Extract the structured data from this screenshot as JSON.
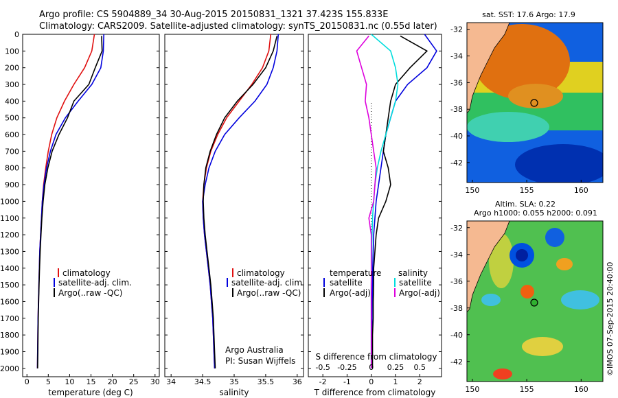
{
  "header": {
    "line1": "Argo profile: CS 5904889_34 30-Aug-2015 20150831_1321 37.423S 155.833E",
    "line2": "Climatology: CARS2009. Satellite-adjusted climatology: synTS_20150831.nc (0.55d later)"
  },
  "colors": {
    "climatology": "#e01010",
    "satellite": "#0000dd",
    "argo": "#000000",
    "cyan": "#00dddd",
    "magenta": "#dd00dd"
  },
  "depth_ticks": [
    "0",
    "100",
    "200",
    "300",
    "400",
    "500",
    "600",
    "700",
    "800",
    "900",
    "1000",
    "1100",
    "1200",
    "1300",
    "1400",
    "1500",
    "1600",
    "1700",
    "1800",
    "1900",
    "2000"
  ],
  "panels": {
    "temperature": {
      "xlabel": "temperature (deg C)",
      "xticks": [
        "0",
        "5",
        "10",
        "15",
        "20",
        "25",
        "30"
      ],
      "legend": [
        "climatology",
        "satellite-adj. clim.",
        "Argo(..raw -QC)"
      ]
    },
    "salinity": {
      "xlabel": "salinity",
      "xticks": [
        "34",
        "34.5",
        "35",
        "35.5",
        "36"
      ],
      "legend": [
        "climatology",
        "satellite-adj. clim.",
        "Argo(..raw -QC)"
      ],
      "credit1": "Argo Australia",
      "credit2": "PI: Susan Wijffels"
    },
    "difference": {
      "xlabel": "T difference from climatology",
      "toplabel": "S difference from climatology",
      "xticks_T": [
        "-2",
        "-1",
        "0",
        "1",
        "2"
      ],
      "xticks_S": [
        "-0.5",
        "-0.25",
        "0",
        "0.25",
        "0.5"
      ],
      "legend_title_T": "temperature",
      "legend_title_S": "salinity",
      "legend_T": [
        "satellite",
        "Argo(-adj)"
      ],
      "legend_S": [
        "satellite",
        "Argo(-adj)"
      ]
    }
  },
  "maps": {
    "sst_title": "sat. SST: 17.6 Argo: 17.9",
    "sla_title1": "Altim. SLA: 0.22",
    "sla_title2": "Argo h1000: 0.055 h2000: 0.091",
    "yticks": [
      "-32",
      "-34",
      "-36",
      "-38",
      "-40",
      "-42"
    ],
    "xticks": [
      "150",
      "155",
      "160"
    ],
    "watermark": "©IMOS 07-Sep-2015 20:40:00"
  },
  "chart_data": [
    {
      "type": "line",
      "title": "",
      "xlabel": "temperature (deg C)",
      "ylabel": "",
      "xlim": [
        -1,
        31
      ],
      "ylim": [
        2050,
        0
      ],
      "series": [
        {
          "name": "climatology",
          "color": "#e01010",
          "x": [
            15.8,
            15.2,
            13.5,
            11.0,
            8.8,
            7.0,
            5.8,
            5.0,
            4.4,
            3.9,
            3.6,
            3.4,
            3.2,
            3.0,
            2.9,
            2.8,
            2.7,
            2.6,
            2.55,
            2.5,
            2.45
          ],
          "y": [
            0,
            100,
            200,
            300,
            400,
            500,
            600,
            700,
            800,
            900,
            1000,
            1100,
            1200,
            1300,
            1400,
            1500,
            1600,
            1700,
            1800,
            1900,
            2000
          ]
        },
        {
          "name": "satellite-adj. clim.",
          "color": "#0000dd",
          "x": [
            18.0,
            17.9,
            17.3,
            15.2,
            12.0,
            9.0,
            6.8,
            5.5,
            4.6,
            4.0,
            3.6,
            3.4,
            3.2,
            3.0,
            2.9,
            2.8,
            2.7,
            2.6,
            2.55,
            2.5,
            2.45
          ],
          "y": [
            0,
            100,
            200,
            300,
            400,
            500,
            600,
            700,
            800,
            900,
            1000,
            1100,
            1200,
            1300,
            1400,
            1500,
            1600,
            1700,
            1800,
            1900,
            2000
          ]
        },
        {
          "name": "Argo(..raw -QC)",
          "color": "#000000",
          "x": [
            17.5,
            17.6,
            16.0,
            14.5,
            11.0,
            9.5,
            7.5,
            5.9,
            4.9,
            4.2,
            3.8,
            3.5,
            3.3,
            3.1,
            2.95,
            2.85,
            2.75,
            2.65,
            2.6,
            2.55,
            2.5
          ],
          "y": [
            10,
            100,
            200,
            300,
            400,
            500,
            600,
            700,
            800,
            900,
            1000,
            1100,
            1200,
            1300,
            1400,
            1500,
            1600,
            1700,
            1800,
            1900,
            2000
          ]
        }
      ]
    },
    {
      "type": "line",
      "title": "",
      "xlabel": "salinity",
      "ylabel": "",
      "xlim": [
        33.9,
        36.1
      ],
      "ylim": [
        2050,
        0
      ],
      "series": [
        {
          "name": "climatology",
          "color": "#e01010",
          "x": [
            35.58,
            35.55,
            35.45,
            35.28,
            35.08,
            34.88,
            34.74,
            34.63,
            34.56,
            34.52,
            34.5,
            34.51,
            34.53,
            34.56,
            34.59,
            34.62,
            34.64,
            34.66,
            34.67,
            34.68,
            34.69
          ],
          "y": [
            0,
            100,
            200,
            300,
            400,
            500,
            600,
            700,
            800,
            900,
            1000,
            1100,
            1200,
            1300,
            1400,
            1500,
            1600,
            1700,
            1800,
            1900,
            2000
          ]
        },
        {
          "name": "satellite-adj. clim.",
          "color": "#0000dd",
          "x": [
            35.7,
            35.68,
            35.62,
            35.52,
            35.33,
            35.08,
            34.85,
            34.7,
            34.6,
            34.54,
            34.5,
            34.51,
            34.53,
            34.56,
            34.59,
            34.62,
            34.64,
            34.66,
            34.67,
            34.68,
            34.69
          ],
          "y": [
            0,
            100,
            200,
            300,
            400,
            500,
            600,
            700,
            800,
            900,
            1000,
            1100,
            1200,
            1300,
            1400,
            1500,
            1600,
            1700,
            1800,
            1900,
            2000
          ]
        },
        {
          "name": "Argo(..raw -QC)",
          "color": "#000000",
          "x": [
            35.68,
            35.62,
            35.5,
            35.3,
            35.05,
            34.85,
            34.72,
            34.62,
            34.55,
            34.52,
            34.51,
            34.52,
            34.54,
            34.57,
            34.6,
            34.63,
            34.65,
            34.67,
            34.68,
            34.69,
            34.7
          ],
          "y": [
            10,
            100,
            200,
            300,
            400,
            500,
            600,
            700,
            800,
            900,
            1000,
            1100,
            1200,
            1300,
            1400,
            1500,
            1600,
            1700,
            1800,
            1900,
            2000
          ]
        }
      ]
    },
    {
      "type": "line",
      "title": "",
      "xlabel": "T difference from climatology",
      "ylabel": "",
      "xlim": [
        -2.6,
        2.9
      ],
      "ylim": [
        2050,
        0
      ],
      "series": [
        {
          "name": "temperature satellite",
          "color": "#0000dd",
          "x": [
            2.2,
            2.7,
            2.3,
            1.5,
            1.0,
            0.8,
            0.6,
            0.5,
            0.4,
            0.3,
            0.2,
            0.15,
            0.1,
            0.08,
            0.06,
            0.05,
            0.04,
            0.03,
            0.02,
            0.01,
            0.0
          ],
          "y": [
            0,
            100,
            200,
            300,
            400,
            500,
            600,
            700,
            800,
            900,
            1000,
            1100,
            1200,
            1300,
            1400,
            1500,
            1600,
            1700,
            1800,
            1900,
            2000
          ]
        },
        {
          "name": "temperature Argo(-adj)",
          "color": "#000000",
          "x": [
            1.2,
            2.3,
            1.6,
            1.0,
            0.8,
            0.7,
            0.6,
            0.5,
            0.7,
            0.8,
            0.6,
            0.3,
            0.2,
            0.15,
            0.1,
            0.1,
            0.08,
            0.08,
            0.05,
            0.05,
            0.05
          ],
          "y": [
            10,
            100,
            200,
            300,
            400,
            500,
            600,
            700,
            800,
            900,
            1000,
            1100,
            1200,
            1300,
            1400,
            1500,
            1600,
            1700,
            1800,
            1900,
            2000
          ]
        },
        {
          "name": "salinity satellite",
          "color": "#00dddd",
          "x": [
            0.0,
            0.8,
            1.0,
            1.1,
            1.0,
            0.8,
            0.6,
            0.4,
            0.25,
            0.15,
            0.1,
            0.05,
            0.03,
            0.02,
            0.01,
            0.0,
            0.0,
            0.0,
            0.0,
            0.0,
            0.0
          ],
          "y": [
            0,
            100,
            200,
            300,
            400,
            500,
            600,
            700,
            800,
            900,
            1000,
            1100,
            1200,
            1300,
            1400,
            1500,
            1600,
            1700,
            1800,
            1900,
            2000
          ]
        },
        {
          "name": "salinity Argo(-adj)",
          "color": "#dd00dd",
          "x": [
            -0.1,
            -0.6,
            -0.4,
            -0.2,
            -0.25,
            -0.1,
            0.0,
            0.1,
            0.2,
            0.15,
            0.1,
            -0.1,
            0.0,
            0.0,
            0.0,
            0.0,
            0.0,
            0.0,
            0.0,
            0.0,
            0.0
          ],
          "y": [
            10,
            100,
            200,
            300,
            400,
            500,
            600,
            700,
            800,
            900,
            1000,
            1100,
            1200,
            1300,
            1400,
            1500,
            1600,
            1700,
            1800,
            1900,
            2000
          ]
        }
      ]
    }
  ]
}
